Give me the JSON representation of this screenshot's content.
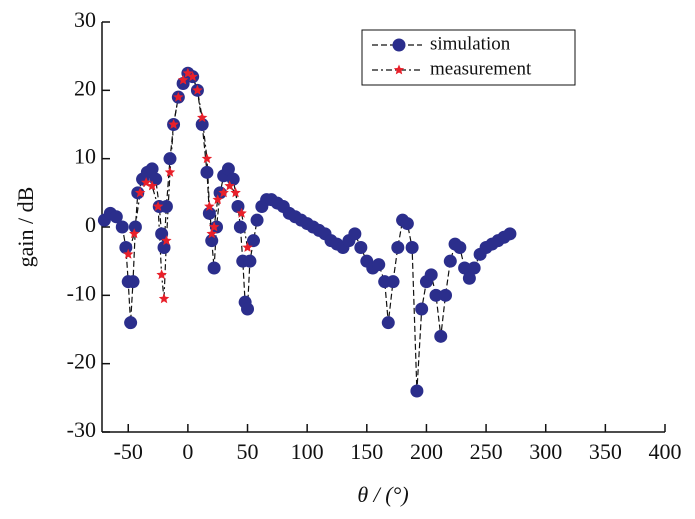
{
  "chart_data": {
    "type": "scatter",
    "xlabel": "θ / (°)",
    "ylabel": "gain / dB",
    "xlim": [
      -72,
      400
    ],
    "ylim": [
      -30,
      30
    ],
    "xticks": [
      -50,
      0,
      50,
      100,
      150,
      200,
      250,
      300,
      350,
      400
    ],
    "yticks": [
      -30,
      -20,
      -10,
      0,
      10,
      20,
      30
    ],
    "legend": "upper right",
    "series": [
      {
        "name": "simulation",
        "color": "#2b2e8c",
        "x": [
          -70,
          -65,
          -60,
          -55,
          -52,
          -50,
          -48,
          -46,
          -44,
          -42,
          -38,
          -34,
          -30,
          -27,
          -24,
          -22,
          -20,
          -18,
          -15,
          -12,
          -8,
          -4,
          0,
          4,
          8,
          12,
          16,
          18,
          20,
          22,
          24,
          27,
          30,
          34,
          38,
          42,
          44,
          46,
          48,
          50,
          52,
          55,
          58,
          62,
          66,
          70,
          75,
          80,
          85,
          90,
          95,
          100,
          105,
          110,
          115,
          120,
          125,
          130,
          135,
          140,
          145,
          150,
          155,
          160,
          165,
          168,
          172,
          176,
          180,
          184,
          188,
          192,
          196,
          200,
          204,
          208,
          212,
          216,
          220,
          224,
          228,
          232,
          236,
          240,
          245,
          250,
          255,
          260,
          265,
          270
        ],
        "values": [
          1,
          2,
          1.5,
          0,
          -3,
          -8,
          -14,
          -8,
          0,
          5,
          7,
          8,
          8.5,
          7,
          3,
          -1,
          -3,
          3,
          10,
          15,
          19,
          21,
          22.5,
          22,
          20,
          15,
          8,
          2,
          -2,
          -6,
          0,
          5,
          7.5,
          8.5,
          7,
          3,
          0,
          -5,
          -11,
          -12,
          -5,
          -2,
          1,
          3,
          4,
          4,
          3.5,
          3,
          2,
          1.5,
          1,
          0.5,
          0,
          -0.5,
          -1,
          -2,
          -2.5,
          -3,
          -2,
          -1,
          -3,
          -5,
          -6,
          -5.5,
          -8,
          -14,
          -8,
          -3,
          1,
          0.5,
          -3,
          -24,
          -12,
          -8,
          -7,
          -10,
          -16,
          -10,
          -5,
          -2.5,
          -3,
          -6,
          -7.5,
          -6,
          -4,
          -3,
          -2.5,
          -2,
          -1.5,
          -1
        ]
      },
      {
        "name": "measurement",
        "color": "#e8202a",
        "x": [
          -50,
          -45,
          -40,
          -35,
          -30,
          -25,
          -22,
          -20,
          -18,
          -15,
          -12,
          -8,
          -4,
          0,
          4,
          8,
          12,
          16,
          18,
          20,
          22,
          25,
          30,
          35,
          40,
          45,
          50
        ],
        "values": [
          -4,
          -1,
          5,
          6.5,
          6,
          3,
          -7,
          -10.5,
          -2,
          8,
          15,
          19,
          21.5,
          22.5,
          22,
          20,
          16,
          10,
          3,
          -1,
          0,
          4,
          5,
          6,
          5,
          2,
          -3
        ]
      }
    ]
  }
}
